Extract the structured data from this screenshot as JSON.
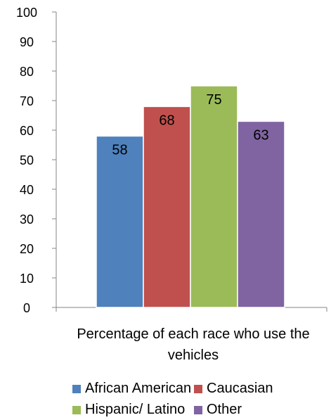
{
  "chart_data": {
    "type": "bar",
    "xlabel": "Percentage  of each race who use the vehicles",
    "ylim": [
      0,
      100
    ],
    "yticks": [
      0,
      10,
      20,
      30,
      40,
      50,
      60,
      70,
      80,
      90,
      100
    ],
    "grid": false,
    "legend_position": "bottom",
    "series": [
      {
        "name": "African American",
        "values": [
          58
        ],
        "color": "#4f81bd"
      },
      {
        "name": "Caucasian",
        "values": [
          68
        ],
        "color": "#c0504d"
      },
      {
        "name": "Hispanic/ Latino",
        "values": [
          75
        ],
        "color": "#9bbb59"
      },
      {
        "name": "Other",
        "values": [
          63
        ],
        "color": "#8064a2"
      }
    ]
  }
}
